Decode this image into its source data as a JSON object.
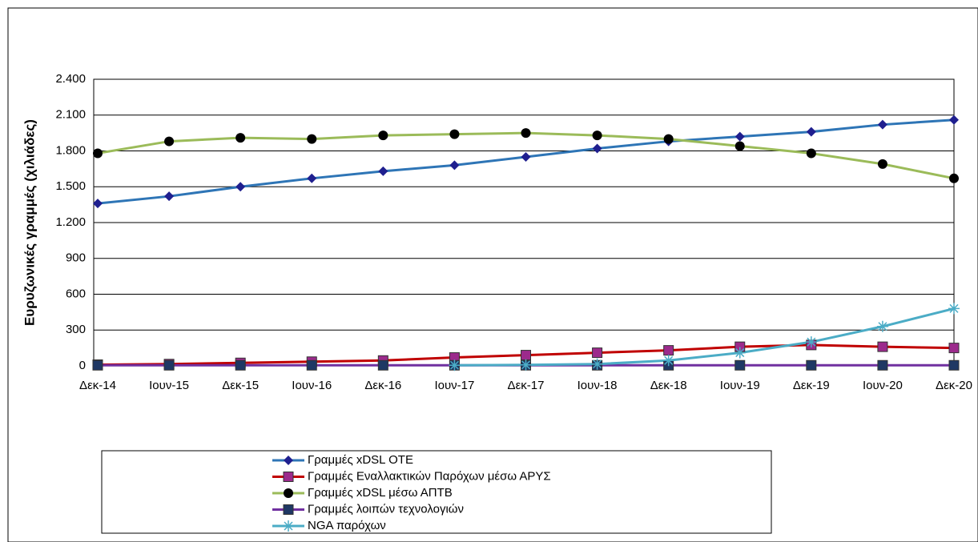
{
  "chart_data": {
    "type": "line",
    "y_label": "Ευρυζωνικές γραμμές (χιλιάδες)",
    "categories": [
      "Δεκ-14",
      "Ιουν-15",
      "Δεκ-15",
      "Ιουν-16",
      "Δεκ-16",
      "Ιουν-17",
      "Δεκ-17",
      "Ιουν-18",
      "Δεκ-18",
      "Ιουν-19",
      "Δεκ-19",
      "Ιουν-20",
      "Δεκ-20"
    ],
    "series": [
      {
        "name": "Γραμμές xDSL ΟΤΕ",
        "color": "#2e75b6",
        "marker": "diamond",
        "marker_color": "#1f1f8f",
        "values": [
          1360,
          1420,
          1500,
          1570,
          1630,
          1680,
          1750,
          1820,
          1880,
          1920,
          1960,
          2020,
          2060
        ]
      },
      {
        "name": "Γραμμές Εναλλακτικών Παρόχων μέσω ΑΡΥΣ",
        "color": "#c00000",
        "marker": "square",
        "marker_color": "#9c2a8c",
        "values": [
          10,
          15,
          25,
          35,
          45,
          70,
          90,
          110,
          130,
          160,
          175,
          160,
          150
        ]
      },
      {
        "name": "Γραμμές xDSL μέσω ΑΠΤΒ",
        "color": "#9bbb59",
        "marker": "circle",
        "marker_color": "#000000",
        "values": [
          1780,
          1880,
          1910,
          1900,
          1930,
          1940,
          1950,
          1930,
          1900,
          1840,
          1780,
          1690,
          1570
        ]
      },
      {
        "name": "Γραμμές λοιπών τεχνολογιών",
        "color": "#7030a0",
        "marker": "square",
        "marker_color": "#1f3864",
        "values": [
          5,
          5,
          5,
          5,
          5,
          5,
          5,
          5,
          5,
          5,
          5,
          5,
          5
        ]
      },
      {
        "name": "NGA παρόχων",
        "color": "#4bacc6",
        "marker": "star",
        "marker_color": "#4bacc6",
        "values": [
          null,
          null,
          null,
          null,
          null,
          5,
          8,
          15,
          45,
          110,
          200,
          330,
          480
        ]
      }
    ],
    "ylim": [
      0,
      2400
    ],
    "yticks": [
      0,
      300,
      600,
      900,
      {
        "value": 1200,
        "label": "1.200"
      },
      {
        "value": 1500,
        "label": "1.500"
      },
      {
        "value": 1800,
        "label": "1.800"
      },
      {
        "value": 2100,
        "label": "2.100"
      },
      {
        "value": 2400,
        "label": "2.400"
      }
    ],
    "grid": true,
    "legend": "bottom"
  }
}
